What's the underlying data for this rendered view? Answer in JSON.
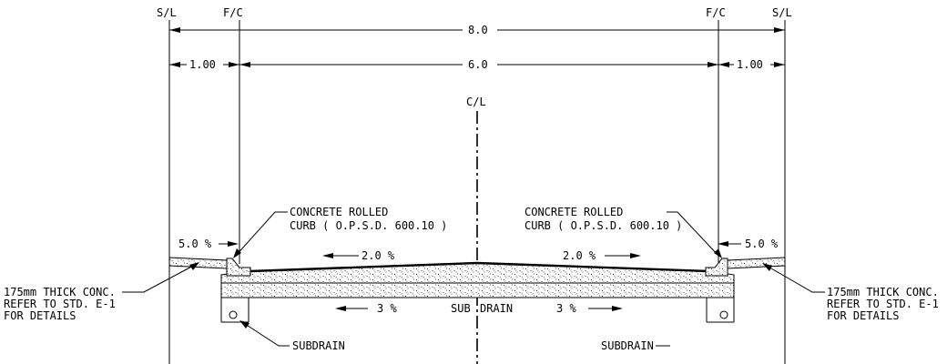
{
  "labels": {
    "sl_left": "S/L",
    "fc_left": "F/C",
    "fc_right": "F/C",
    "sl_right": "S/L",
    "centerline": "C/L"
  },
  "dimensions": {
    "overall": "8.0",
    "left_boulevard": "1.00",
    "roadway": "6.0",
    "right_boulevard": "1.00"
  },
  "slopes": {
    "left_sidewalk": "5.0 %",
    "right_sidewalk": "5.0 %",
    "left_pavement": "2.0 %",
    "right_pavement": "2.0 %",
    "left_subgrade": "3 %",
    "right_subgrade": "3 %"
  },
  "notes": {
    "curb_left": [
      "CONCRETE ROLLED",
      "CURB ( O.P.S.D. 600.10 )"
    ],
    "curb_right": [
      "CONCRETE ROLLED",
      "CURB ( O.P.S.D. 600.10 )"
    ],
    "sidewalk_left": [
      "175mm THICK CONC.",
      "REFER TO STD. E-1",
      "FOR DETAILS"
    ],
    "sidewalk_right": [
      "175mm THICK CONC.",
      "REFER TO STD. E-1",
      "FOR DETAILS"
    ],
    "subdrain_left": "SUBDRAIN",
    "subdrain_right": "SUBDRAIN",
    "subdrain_center_a": "SUB",
    "subdrain_center_b": "DRAIN"
  }
}
